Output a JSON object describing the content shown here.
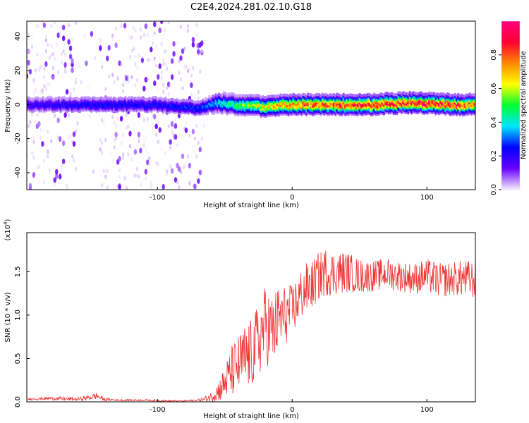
{
  "figure_title": "C2E4.2024.281.02.10.G18",
  "colors": {
    "snr_line": "#ee3333",
    "spectrogram_ramp": [
      "#f4ecfb",
      "#6a00ff",
      "#0000ff",
      "#00e5ff",
      "#00ff33",
      "#ffff00",
      "#ff8800",
      "#ff0033",
      "#ff0080"
    ]
  },
  "chart_data": [
    {
      "type": "heatmap",
      "title": "",
      "xlabel": "Height of straight line (km)",
      "ylabel": "Frequency (Hz)",
      "xlim": [
        -197,
        136
      ],
      "ylim": [
        -50,
        49
      ],
      "xticks": [
        -100,
        0,
        100
      ],
      "xtick_labels": [
        "-100",
        "0",
        "100"
      ],
      "yticks": [
        -40,
        -20,
        0,
        20,
        40
      ],
      "ytick_labels": [
        "-40",
        "-20",
        "0",
        "20",
        "40"
      ],
      "colorbar": {
        "label": "Normalized spectral amplitude",
        "range": [
          0,
          1
        ],
        "ticks": [
          0.0,
          0.2,
          0.4,
          0.6,
          0.8
        ],
        "tick_labels": [
          "0.0",
          "0.2",
          "0.4",
          "0.6",
          "0.8"
        ]
      },
      "ridge": {
        "x": [
          -197,
          -150,
          -100,
          -70,
          -55,
          -40,
          -20,
          0,
          20,
          40,
          60,
          80,
          100,
          120,
          136
        ],
        "frequency": [
          0,
          0,
          0,
          -2,
          1,
          0,
          -1,
          0,
          0,
          0,
          0,
          1,
          1,
          0,
          0
        ],
        "peak_amplitude": [
          0.2,
          0.25,
          0.25,
          0.3,
          0.4,
          0.55,
          0.7,
          0.85,
          0.85,
          0.9,
          0.95,
          0.9,
          0.95,
          0.9,
          0.8
        ]
      },
      "noise_region_x": [
        -197,
        -65
      ]
    },
    {
      "type": "line",
      "title": "",
      "xlabel": "Height of straight line (km)",
      "ylabel": "SNR (10 * v/v)",
      "y_multiplier": "(x10^4)",
      "multiplier_base": "(x10",
      "multiplier_exp": "4",
      "multiplier_close": ")",
      "xlim": [
        -197,
        136
      ],
      "ylim": [
        0,
        1.95
      ],
      "xticks": [
        -100,
        0,
        100
      ],
      "xtick_labels": [
        "-100",
        "0",
        "100"
      ],
      "yticks": [
        0.0,
        0.5,
        1.0,
        1.5
      ],
      "ytick_labels": [
        "0.0",
        "0.5",
        "1.0",
        "1.5"
      ],
      "series": [
        {
          "x": [
            -197,
            -180,
            -160,
            -150,
            -145,
            -140,
            -130,
            -110,
            -90,
            -80,
            -70,
            -65,
            -60,
            -55,
            -50,
            -45,
            -40,
            -35,
            -30,
            -25,
            -20,
            -15,
            -10,
            -5,
            0,
            5,
            10,
            15,
            20,
            25,
            30,
            40,
            50,
            60,
            70,
            80,
            90,
            100,
            110,
            120,
            130,
            136
          ],
          "values": [
            0.03,
            0.04,
            0.03,
            0.05,
            0.07,
            0.03,
            0.02,
            0.02,
            0.01,
            0.01,
            0.02,
            0.03,
            0.06,
            0.12,
            0.22,
            0.35,
            0.42,
            0.5,
            0.55,
            0.7,
            0.9,
            0.8,
            0.95,
            1.0,
            1.05,
            1.2,
            1.3,
            1.35,
            1.45,
            1.5,
            1.48,
            1.5,
            1.45,
            1.45,
            1.48,
            1.45,
            1.42,
            1.45,
            1.4,
            1.42,
            1.42,
            1.4
          ],
          "noise_amplitude": [
            0.01,
            0.02,
            0.02,
            0.03,
            0.04,
            0.02,
            0.01,
            0.01,
            0.01,
            0.01,
            0.01,
            0.03,
            0.06,
            0.12,
            0.2,
            0.3,
            0.35,
            0.4,
            0.4,
            0.45,
            0.45,
            0.45,
            0.4,
            0.35,
            0.3,
            0.3,
            0.3,
            0.28,
            0.28,
            0.28,
            0.26,
            0.24,
            0.2,
            0.18,
            0.18,
            0.18,
            0.18,
            0.2,
            0.2,
            0.2,
            0.22,
            0.22
          ]
        }
      ]
    }
  ]
}
